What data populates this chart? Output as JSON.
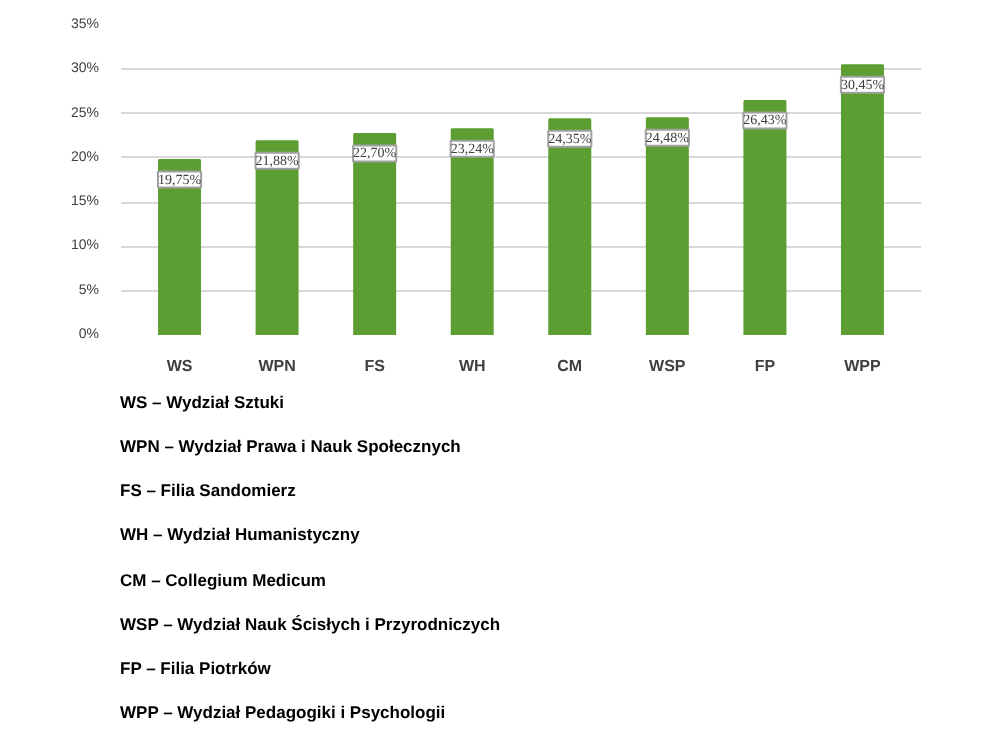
{
  "chart_data": {
    "type": "bar",
    "categories": [
      "WS",
      "WPN",
      "FS",
      "WH",
      "CM",
      "WSP",
      "FP",
      "WPP"
    ],
    "values": [
      19.75,
      21.88,
      22.7,
      23.24,
      24.35,
      24.48,
      26.43,
      30.45
    ],
    "value_labels": [
      "19,75%",
      "21,88%",
      "22,70%",
      "23,24%",
      "24,35%",
      "24,48%",
      "26,43%",
      "30,45%"
    ],
    "color": "#5c9e31",
    "ylim": [
      0,
      35
    ],
    "yticks": [
      {
        "value": 0,
        "label": "0%"
      },
      {
        "value": 5,
        "label": "5%"
      },
      {
        "value": 10,
        "label": "10%"
      },
      {
        "value": 15,
        "label": "15%"
      },
      {
        "value": 20,
        "label": "20%"
      },
      {
        "value": 25,
        "label": "25%"
      },
      {
        "value": 30,
        "label": "30%"
      },
      {
        "value": 35,
        "label": "35%"
      }
    ],
    "grid": "y",
    "annotations": [
      "WS – Wydział Sztuki",
      "WPN – Wydział Prawa i Nauk Społecznych",
      "FS – Filia Sandomierz",
      "WH – Wydział Humanistyczny",
      "CM – Collegium Medicum",
      "WSP – Wydział Nauk Ścisłych i Przyrodniczych",
      "FP – Filia Piotrków",
      "WPP – Wydział Pedagogiki i Psychologii"
    ]
  }
}
